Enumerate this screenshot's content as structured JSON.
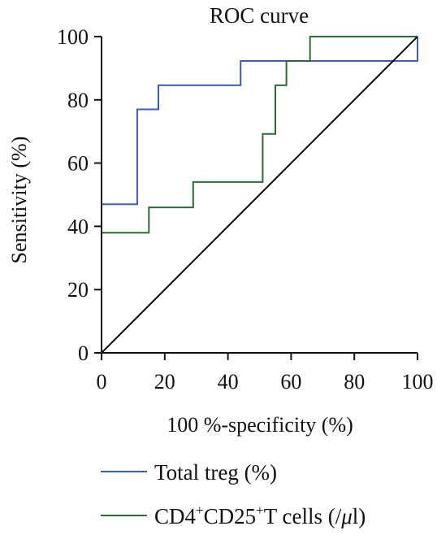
{
  "chart_data": {
    "type": "line",
    "title": "ROC curve",
    "xlabel": "100 %-specificity (%)",
    "ylabel": "Sensitivity (%)",
    "xlim": [
      0,
      100
    ],
    "ylim": [
      0,
      100
    ],
    "xticks": [
      "0",
      "20",
      "40",
      "60",
      "80",
      "100"
    ],
    "yticks": [
      "0",
      "20",
      "40",
      "60",
      "80",
      "100"
    ],
    "grid": false,
    "legend_position": "bottom",
    "series": [
      {
        "name": "Total treg (%)",
        "color": "#3a5fb7",
        "step": true,
        "x": [
          0,
          11.3,
          11.3,
          18,
          18,
          44,
          44,
          100,
          100
        ],
        "y": [
          47,
          47,
          77,
          77,
          84.6,
          84.6,
          92.3,
          92.3,
          100
        ]
      },
      {
        "name_parts": [
          "CD4",
          "+",
          "CD25",
          "+",
          "T cells (/",
          "μ",
          "l)"
        ],
        "color": "#2d6a3a",
        "step": true,
        "x": [
          0,
          15,
          15,
          29,
          29,
          51,
          51,
          55,
          55,
          58.5,
          58.5,
          66,
          66,
          100
        ],
        "y": [
          38,
          38,
          46,
          46,
          54,
          54,
          69.2,
          69.2,
          84.6,
          84.6,
          92.3,
          92.3,
          100,
          100
        ]
      },
      {
        "color": "#000000",
        "x": [
          0,
          100
        ],
        "y": [
          0,
          100
        ]
      }
    ]
  }
}
